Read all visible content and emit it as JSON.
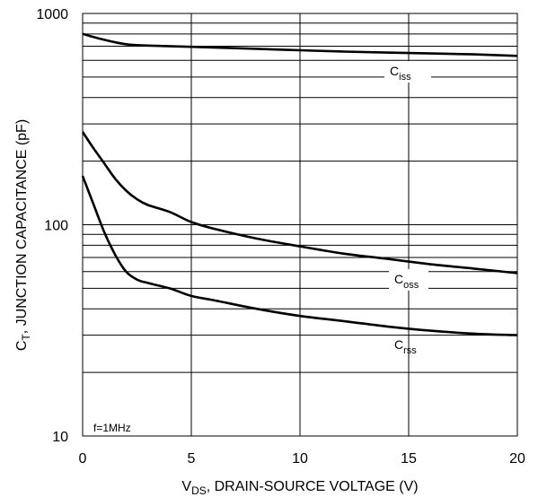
{
  "chart_data": {
    "type": "line",
    "xlabel_main": "V",
    "xlabel_sub": "DS",
    "xlabel_rest": ", DRAIN-SOURCE VOLTAGE (V)",
    "ylabel_main": "C",
    "ylabel_sub": "T",
    "ylabel_rest": ", JUNCTION CAPACITANCE (pF)",
    "x_ticks": [
      "0",
      "5",
      "10",
      "15",
      "20"
    ],
    "y_ticks": [
      "10",
      "100",
      "1000"
    ],
    "xlim": [
      0,
      20
    ],
    "ylim": [
      10,
      1000
    ],
    "y_scale": "log",
    "grid": true,
    "annotation": "f=1MHz",
    "series": [
      {
        "name": "C_iss",
        "label_main": "C",
        "label_sub": "iss",
        "points": [
          [
            0,
            800
          ],
          [
            1,
            750
          ],
          [
            2,
            715
          ],
          [
            3,
            705
          ],
          [
            5,
            695
          ],
          [
            8,
            680
          ],
          [
            10,
            670
          ],
          [
            12,
            660
          ],
          [
            15,
            650
          ],
          [
            18,
            640
          ],
          [
            20,
            630
          ]
        ]
      },
      {
        "name": "C_oss",
        "label_main": "C",
        "label_sub": "oss",
        "points": [
          [
            0,
            275
          ],
          [
            0.5,
            230
          ],
          [
            1,
            195
          ],
          [
            1.5,
            165
          ],
          [
            2,
            145
          ],
          [
            2.5,
            132
          ],
          [
            3,
            124
          ],
          [
            4,
            115
          ],
          [
            5,
            103
          ],
          [
            6,
            96
          ],
          [
            8,
            86
          ],
          [
            10,
            79
          ],
          [
            12,
            73
          ],
          [
            14,
            69
          ],
          [
            16,
            65
          ],
          [
            18,
            62
          ],
          [
            20,
            59
          ]
        ]
      },
      {
        "name": "C_rss",
        "label_main": "C",
        "label_sub": "rss",
        "points": [
          [
            0,
            170
          ],
          [
            0.5,
            125
          ],
          [
            1,
            92
          ],
          [
            1.5,
            72
          ],
          [
            2,
            60
          ],
          [
            2.5,
            55
          ],
          [
            3,
            53
          ],
          [
            4,
            50
          ],
          [
            5,
            46
          ],
          [
            6,
            44
          ],
          [
            8,
            40
          ],
          [
            10,
            37
          ],
          [
            12,
            35
          ],
          [
            14,
            33
          ],
          [
            16,
            31.5
          ],
          [
            18,
            30.5
          ],
          [
            20,
            30
          ]
        ]
      }
    ]
  }
}
